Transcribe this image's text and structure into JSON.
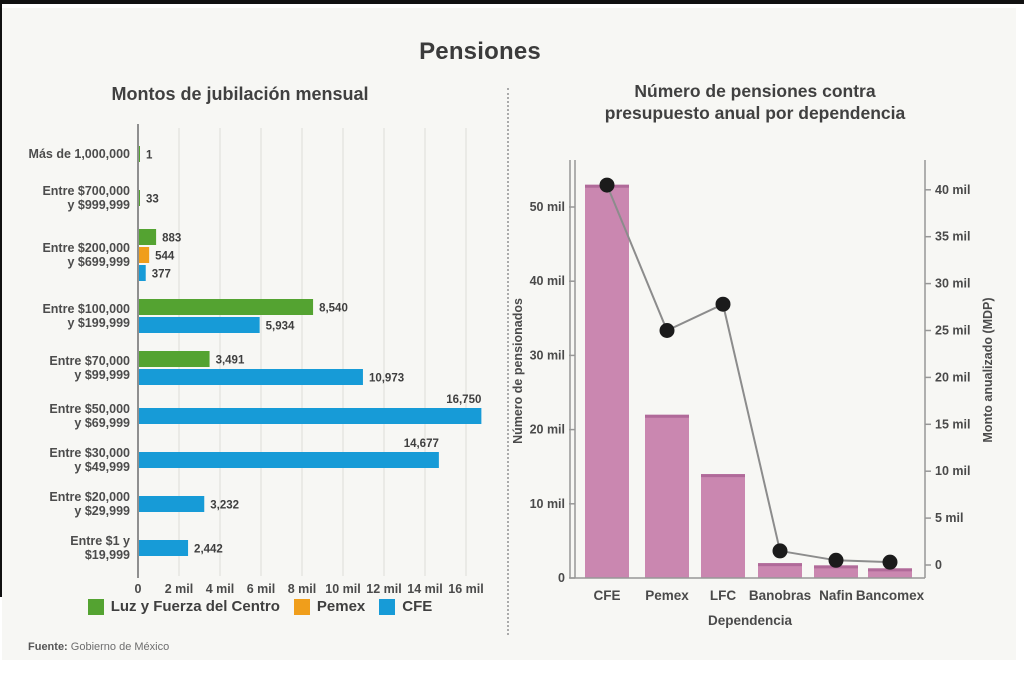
{
  "page": {
    "title": "Pensiones",
    "source_label": "Fuente:",
    "source_text": " Gobierno de México"
  },
  "colors": {
    "green": "#54a331",
    "orange": "#f09e1b",
    "blue": "#179bd7",
    "pink": "#ca87b0",
    "pink_edge": "#b06a99",
    "line": "#8c8c8c",
    "dot": "#1b1b1b",
    "grid": "#e6e6e2",
    "axis": "#979797",
    "text_dark": "#3f3f3f",
    "text_gray": "#4a4a4a"
  },
  "chart_data": [
    {
      "type": "bar",
      "orientation": "horizontal",
      "title": "Montos de jubilación mensual",
      "x_ticks": [
        "0",
        "2 mil",
        "4 mil",
        "6 mil",
        "8 mil",
        "10 mil",
        "12 mil",
        "14 mil",
        "16 mil"
      ],
      "x_max": 16000,
      "grid": true,
      "legend_position": "bottom",
      "legend": [
        {
          "label": "Luz y Fuerza del Centro",
          "color_key": "green"
        },
        {
          "label": "Pemex",
          "color_key": "orange"
        },
        {
          "label": "CFE",
          "color_key": "blue"
        }
      ],
      "rows": [
        {
          "label": [
            "Más de 1,000,000"
          ],
          "bars": [
            {
              "series": "Luz y Fuerza del Centro",
              "color_key": "green",
              "value": 1,
              "text": "1"
            }
          ]
        },
        {
          "label": [
            "Entre $700,000",
            "y $999,999"
          ],
          "bars": [
            {
              "series": "Luz y Fuerza del Centro",
              "color_key": "green",
              "value": 33,
              "text": "33"
            }
          ]
        },
        {
          "label": [
            "Entre $200,000",
            "y $699,999"
          ],
          "bars": [
            {
              "series": "Luz y Fuerza del Centro",
              "color_key": "green",
              "value": 883,
              "text": "883"
            },
            {
              "series": "Pemex",
              "color_key": "orange",
              "value": 544,
              "text": "544"
            },
            {
              "series": "CFE",
              "color_key": "blue",
              "value": 377,
              "text": "377"
            }
          ]
        },
        {
          "label": [
            "Entre $100,000",
            "y $199,999"
          ],
          "bars": [
            {
              "series": "Luz y Fuerza del Centro",
              "color_key": "green",
              "value": 8540,
              "text": "8,540"
            },
            {
              "series": "CFE",
              "color_key": "blue",
              "value": 5934,
              "text": "5,934"
            }
          ]
        },
        {
          "label": [
            "Entre $70,000",
            "y $99,999"
          ],
          "bars": [
            {
              "series": "Luz y Fuerza del Centro",
              "color_key": "green",
              "value": 3491,
              "text": "3,491"
            },
            {
              "series": "CFE",
              "color_key": "blue",
              "value": 10973,
              "text": "10,973"
            }
          ]
        },
        {
          "label": [
            "Entre $50,000",
            "y $69,999"
          ],
          "bars": [
            {
              "series": "CFE",
              "color_key": "blue",
              "value": 16750,
              "text": "16,750",
              "text_pos": "above"
            }
          ]
        },
        {
          "label": [
            "Entre $30,000",
            "y $49,999"
          ],
          "bars": [
            {
              "series": "CFE",
              "color_key": "blue",
              "value": 14677,
              "text": "14,677",
              "text_pos": "above"
            }
          ]
        },
        {
          "label": [
            "Entre $20,000",
            "y $29,999"
          ],
          "bars": [
            {
              "series": "CFE",
              "color_key": "blue",
              "value": 3232,
              "text": "3,232"
            }
          ]
        },
        {
          "label": [
            "Entre $1 y",
            "$19,999"
          ],
          "bars": [
            {
              "series": "CFE",
              "color_key": "blue",
              "value": 2442,
              "text": "2,442"
            }
          ]
        }
      ]
    },
    {
      "type": "bar+line",
      "title": [
        "Número de pensiones contra",
        "presupuesto anual por dependencia"
      ],
      "categories": [
        "CFE",
        "Pemex",
        "LFC",
        "Banobras",
        "Nafin",
        "Bancomex"
      ],
      "xlabel": "Dependencia",
      "bar_series": {
        "name": "Número de pensionados",
        "axis": "left",
        "values": [
          53000,
          22000,
          14000,
          2000,
          1700,
          1300
        ]
      },
      "line_series": {
        "name": "Monto anualizado (MDP)",
        "axis": "right",
        "values": [
          40500,
          25000,
          27800,
          1500,
          500,
          300
        ]
      },
      "left_axis": {
        "label": "Número de pensionados",
        "ticks": [
          "0",
          "10 mil",
          "20 mil",
          "30 mil",
          "40 mil",
          "50 mil"
        ],
        "tick_step": 10000,
        "max": 56000
      },
      "right_axis": {
        "label": "Monto anualizado (MDP)",
        "ticks": [
          "0",
          "5 mil",
          "10 mil",
          "15 mil",
          "20 mil",
          "25 mil",
          "30 mil",
          "35 mil",
          "40 mil"
        ],
        "tick_step": 5000,
        "max": 44000
      }
    }
  ]
}
